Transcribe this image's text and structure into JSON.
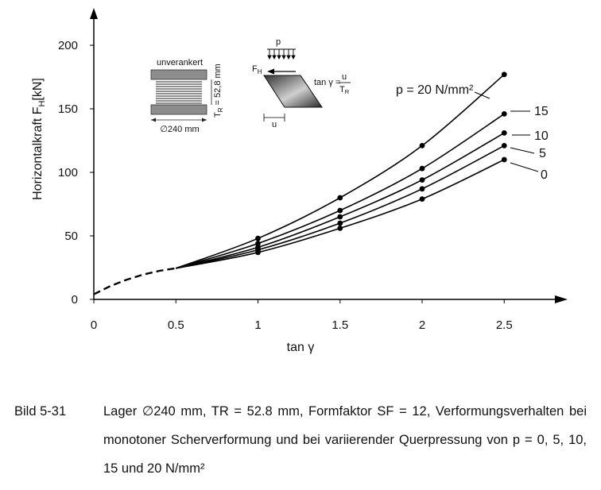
{
  "chart_data": {
    "type": "line",
    "xlabel": "tan γ",
    "ylabel": "Horizontalkraft F",
    "ylabel_sub": "H",
    "ylabel_unit": "[kN]",
    "xlim": [
      0,
      2.7
    ],
    "ylim": [
      0,
      215
    ],
    "xticks": [
      0,
      0.5,
      1,
      1.5,
      2,
      2.5
    ],
    "xtick_labels": [
      "0",
      "0.5",
      "1",
      "1.5",
      "2",
      "2.5"
    ],
    "yticks": [
      0,
      50,
      100,
      150,
      200
    ],
    "ytick_labels": [
      "0",
      "50",
      "100",
      "150",
      "200"
    ],
    "grid": false,
    "dashed_segment": {
      "x": [
        0,
        0.1,
        0.2,
        0.3,
        0.4,
        0.5
      ],
      "y": [
        4,
        10.5,
        15.5,
        19.5,
        22.5,
        24.5
      ]
    },
    "x": [
      0.5,
      1,
      1.5,
      2,
      2.5
    ],
    "series": [
      {
        "name": "p = 20 N/mm²",
        "values": [
          24.5,
          48,
          80,
          121,
          177
        ]
      },
      {
        "name": "15",
        "values": [
          24.5,
          44,
          70,
          103,
          146
        ]
      },
      {
        "name": "10",
        "values": [
          24.5,
          41,
          65,
          94,
          131
        ]
      },
      {
        "name": "5",
        "values": [
          24.5,
          39,
          60,
          87,
          121
        ]
      },
      {
        "name": "0",
        "values": [
          24.5,
          37,
          56,
          79,
          110
        ]
      }
    ]
  },
  "inset": {
    "bearing_title": "unverankert",
    "bearing_height": "T",
    "bearing_height_sub": "R",
    "bearing_height_value": " = 52,8 mm",
    "bearing_diameter": "∅240 mm",
    "load_label": "p",
    "force_label": "F",
    "force_sub": "H",
    "tan_label": "tan γ =",
    "frac_num": "u",
    "frac_den": "T",
    "frac_den_sub": "R",
    "shear_label": "u"
  },
  "caption": {
    "number": "Bild 5-31",
    "text": "Lager ∅240 mm, TR = 52.8 mm, Formfaktor SF = 12, Verformungsverhalten bei monotoner Scherverformung und bei variierender Querpressung von p = 0, 5, 10, 15 und 20 N/mm²"
  }
}
